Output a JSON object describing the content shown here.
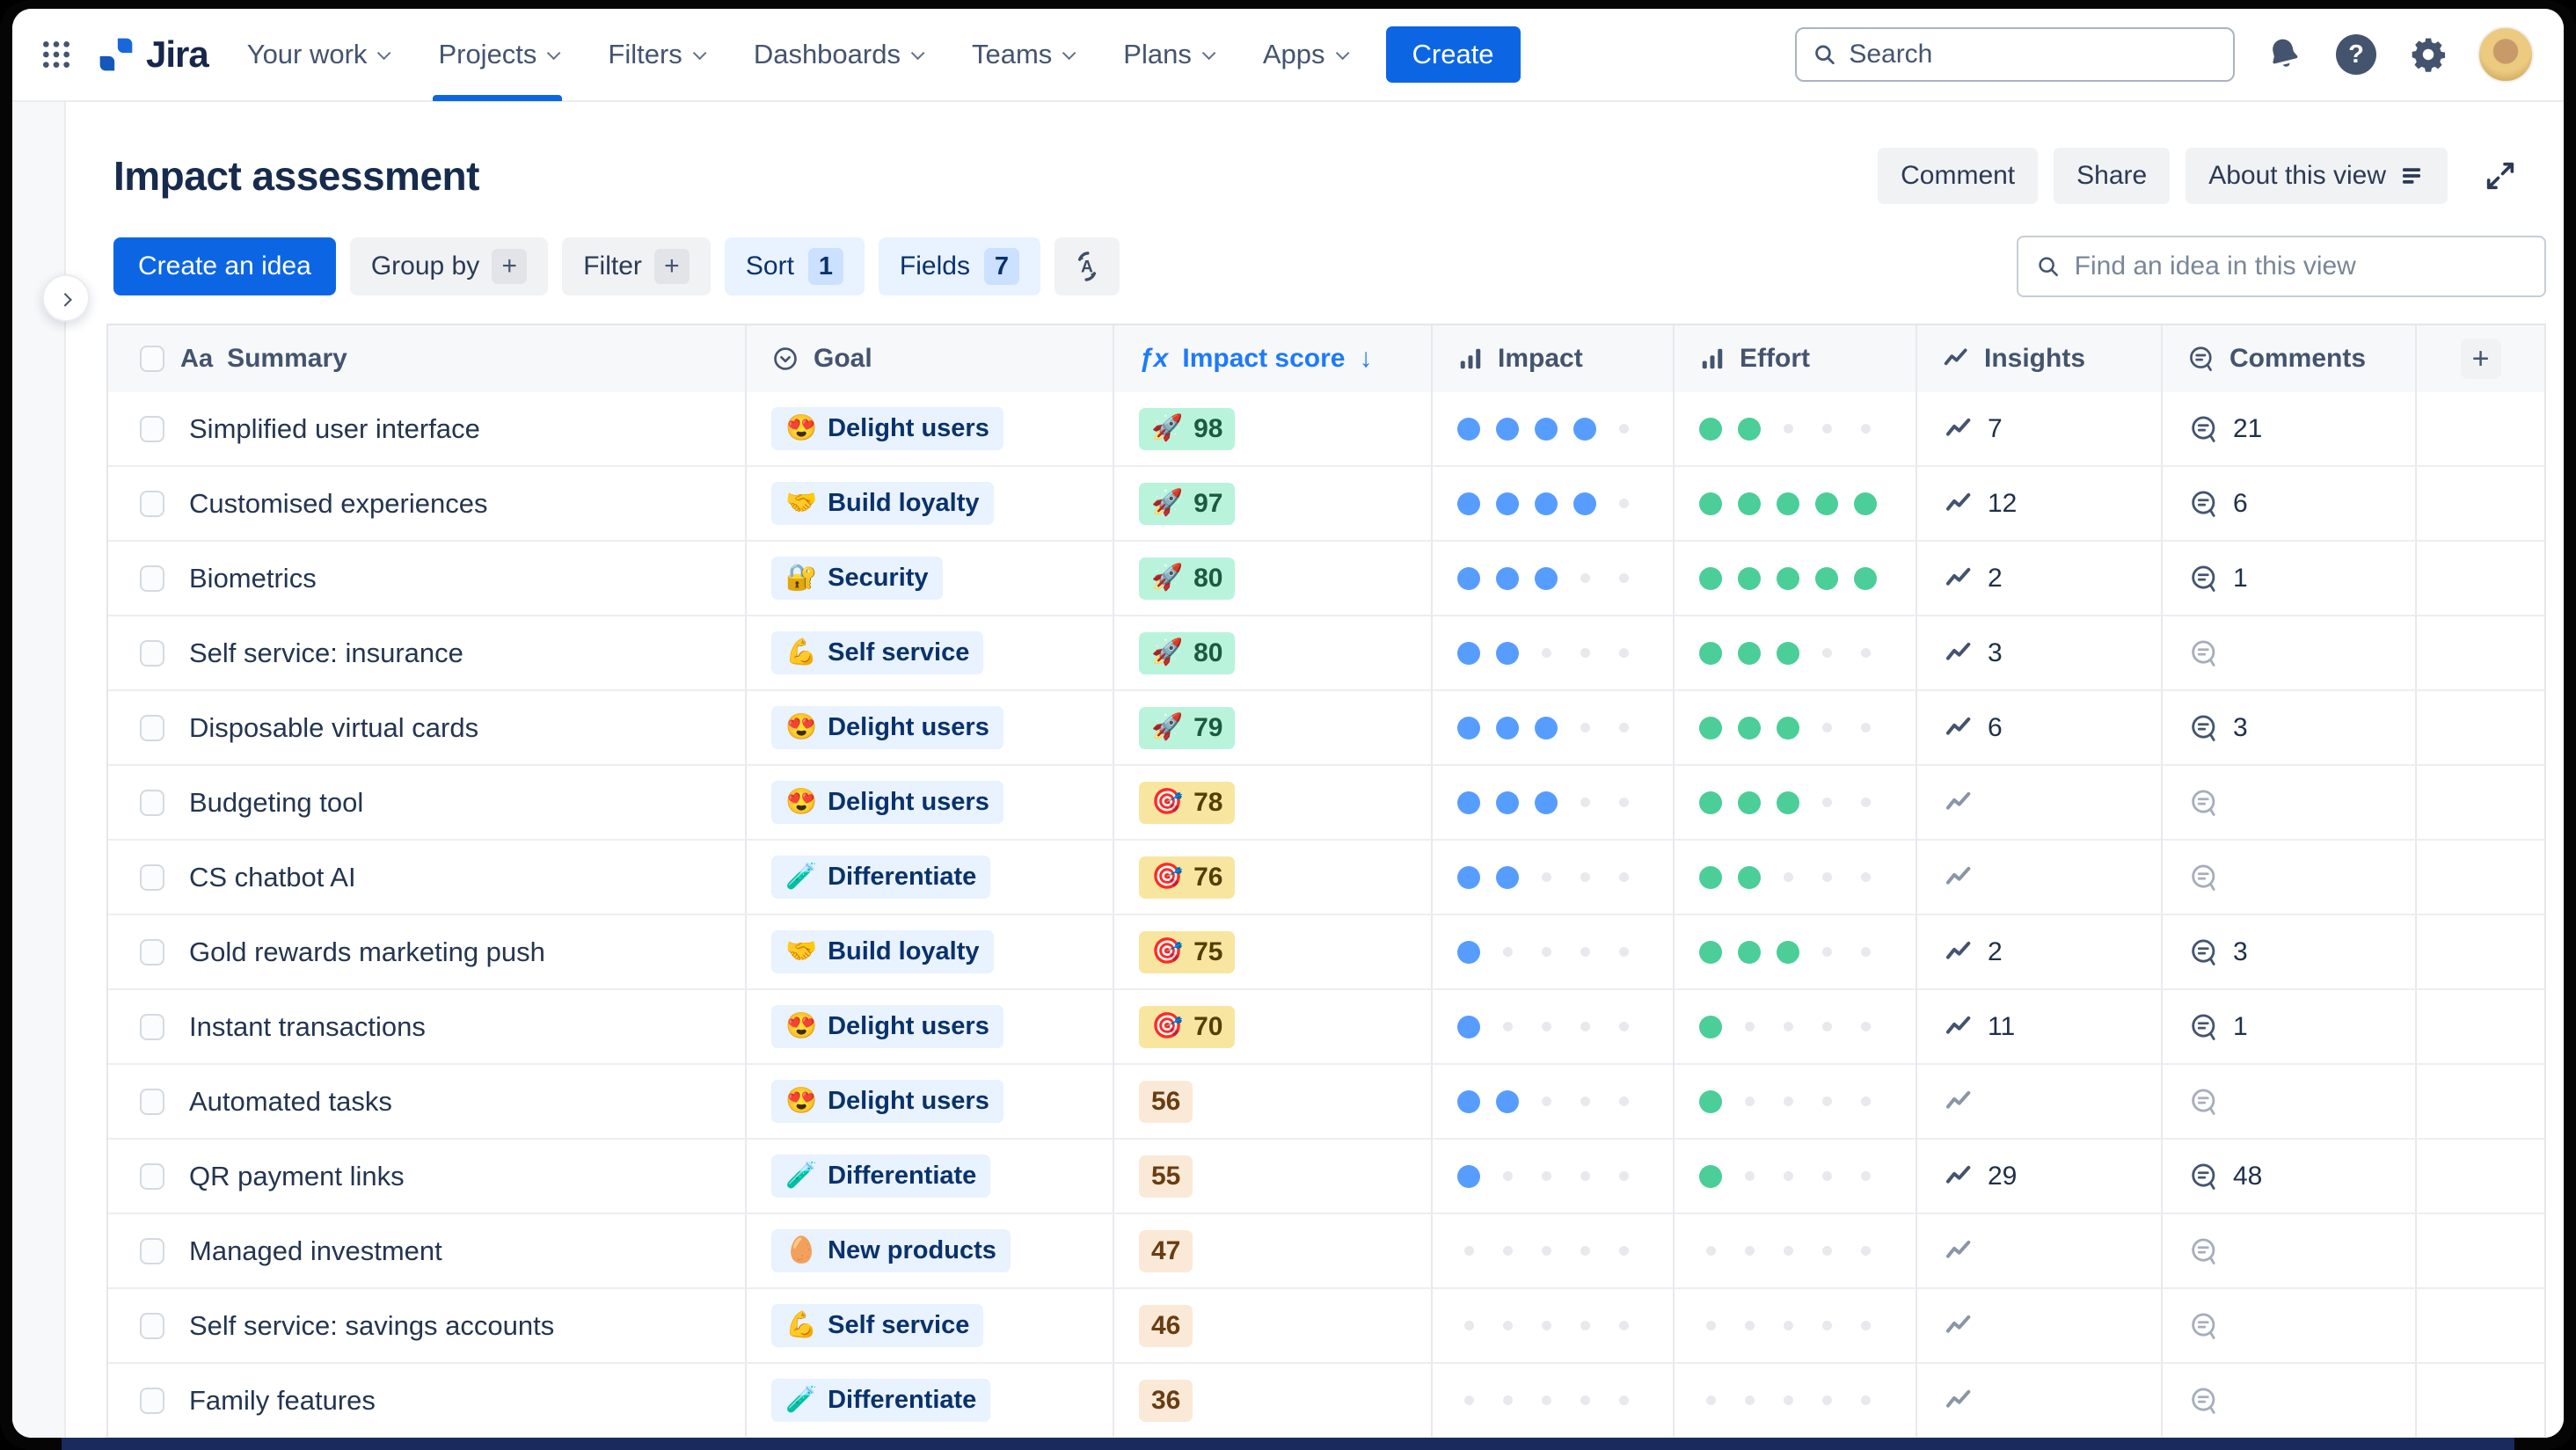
{
  "nav": {
    "menu": [
      {
        "label": "Your work",
        "active": false
      },
      {
        "label": "Projects",
        "active": true
      },
      {
        "label": "Filters",
        "active": false
      },
      {
        "label": "Dashboards",
        "active": false
      },
      {
        "label": "Teams",
        "active": false
      },
      {
        "label": "Plans",
        "active": false
      },
      {
        "label": "Apps",
        "active": false
      }
    ],
    "logo_text": "Jira",
    "create_label": "Create",
    "search_placeholder": "Search",
    "help_glyph": "?"
  },
  "header": {
    "title": "Impact assessment",
    "comment_label": "Comment",
    "share_label": "Share",
    "about_label": "About this view"
  },
  "toolbar": {
    "create_idea_label": "Create an idea",
    "group_by_label": "Group by",
    "filter_label": "Filter",
    "sort_label": "Sort",
    "sort_count": "1",
    "fields_label": "Fields",
    "fields_count": "7",
    "plus_glyph": "+",
    "find_placeholder": "Find an idea in this view"
  },
  "table": {
    "columns": [
      {
        "key": "summary",
        "label": "Summary",
        "icon": "aa-text-icon"
      },
      {
        "key": "goal",
        "label": "Goal",
        "icon": "circle-chevron-icon"
      },
      {
        "key": "impact_score",
        "label": "Impact score",
        "icon": "formula-fx-icon",
        "sorted": "desc"
      },
      {
        "key": "impact",
        "label": "Impact",
        "icon": "bar-chart-icon"
      },
      {
        "key": "effort",
        "label": "Effort",
        "icon": "bar-chart-icon"
      },
      {
        "key": "insights",
        "label": "Insights",
        "icon": "trend-icon"
      },
      {
        "key": "comments",
        "label": "Comments",
        "icon": "comment-bubble-icon"
      }
    ],
    "aa_glyph": "Aa",
    "fx_glyph": "ƒx",
    "sort_arrow_glyph": "↓",
    "add_column_glyph": "+",
    "rating_max": 5,
    "rows": [
      {
        "summary": "Simplified user interface",
        "goal_emoji": "😍",
        "goal": "Delight users",
        "score_emoji": "🚀",
        "score": "98",
        "score_variant": "green",
        "impact": 4,
        "effort": 2,
        "insights": "7",
        "comments": "21"
      },
      {
        "summary": "Customised experiences",
        "goal_emoji": "🤝",
        "goal": "Build loyalty",
        "score_emoji": "🚀",
        "score": "97",
        "score_variant": "green",
        "impact": 4,
        "effort": 5,
        "insights": "12",
        "comments": "6"
      },
      {
        "summary": "Biometrics",
        "goal_emoji": "🔐",
        "goal": "Security",
        "score_emoji": "🚀",
        "score": "80",
        "score_variant": "green",
        "impact": 3,
        "effort": 5,
        "insights": "2",
        "comments": "1"
      },
      {
        "summary": "Self service: insurance",
        "goal_emoji": "💪",
        "goal": "Self service",
        "score_emoji": "🚀",
        "score": "80",
        "score_variant": "green",
        "impact": 2,
        "effort": 3,
        "insights": "3",
        "comments": null
      },
      {
        "summary": "Disposable virtual cards",
        "goal_emoji": "😍",
        "goal": "Delight users",
        "score_emoji": "🚀",
        "score": "79",
        "score_variant": "green",
        "impact": 3,
        "effort": 3,
        "insights": "6",
        "comments": "3"
      },
      {
        "summary": "Budgeting tool",
        "goal_emoji": "😍",
        "goal": "Delight users",
        "score_emoji": "🎯",
        "score": "78",
        "score_variant": "yellow",
        "impact": 3,
        "effort": 3,
        "insights": null,
        "comments": null
      },
      {
        "summary": "CS chatbot AI",
        "goal_emoji": "🧪",
        "goal": "Differentiate",
        "score_emoji": "🎯",
        "score": "76",
        "score_variant": "yellow",
        "impact": 2,
        "effort": 2,
        "insights": null,
        "comments": null
      },
      {
        "summary": "Gold rewards marketing push",
        "goal_emoji": "🤝",
        "goal": "Build loyalty",
        "score_emoji": "🎯",
        "score": "75",
        "score_variant": "yellow",
        "impact": 1,
        "effort": 3,
        "insights": "2",
        "comments": "3"
      },
      {
        "summary": "Instant transactions",
        "goal_emoji": "😍",
        "goal": "Delight users",
        "score_emoji": "🎯",
        "score": "70",
        "score_variant": "yellow",
        "impact": 1,
        "effort": 1,
        "insights": "11",
        "comments": "1"
      },
      {
        "summary": "Automated tasks",
        "goal_emoji": "😍",
        "goal": "Delight users",
        "score_emoji": "",
        "score": "56",
        "score_variant": "peach",
        "impact": 2,
        "effort": 1,
        "insights": null,
        "comments": null
      },
      {
        "summary": "QR payment links",
        "goal_emoji": "🧪",
        "goal": "Differentiate",
        "score_emoji": "",
        "score": "55",
        "score_variant": "peach",
        "impact": 1,
        "effort": 1,
        "insights": "29",
        "comments": "48"
      },
      {
        "summary": "Managed investment",
        "goal_emoji": "🥚",
        "goal": "New products",
        "score_emoji": "",
        "score": "47",
        "score_variant": "peach",
        "impact": 0,
        "effort": 0,
        "insights": null,
        "comments": null
      },
      {
        "summary": "Self service: savings accounts",
        "goal_emoji": "💪",
        "goal": "Self service",
        "score_emoji": "",
        "score": "46",
        "score_variant": "peach",
        "impact": 0,
        "effort": 0,
        "insights": null,
        "comments": null
      },
      {
        "summary": "Family features",
        "goal_emoji": "🧪",
        "goal": "Differentiate",
        "score_emoji": "",
        "score": "36",
        "score_variant": "peach",
        "impact": 0,
        "effort": 0,
        "insights": null,
        "comments": null
      }
    ]
  },
  "colors": {
    "accent_blue": "#0C66E4",
    "link_blue": "#1D7AFC",
    "impact_dot": "#579DFF",
    "effort_dot": "#4BCE97",
    "goal_pill_bg": "#E9F2FF",
    "score_green_bg": "#BAF3DB",
    "score_yellow_bg": "#F8E6A0",
    "score_peach_bg": "#FBE9D8"
  }
}
